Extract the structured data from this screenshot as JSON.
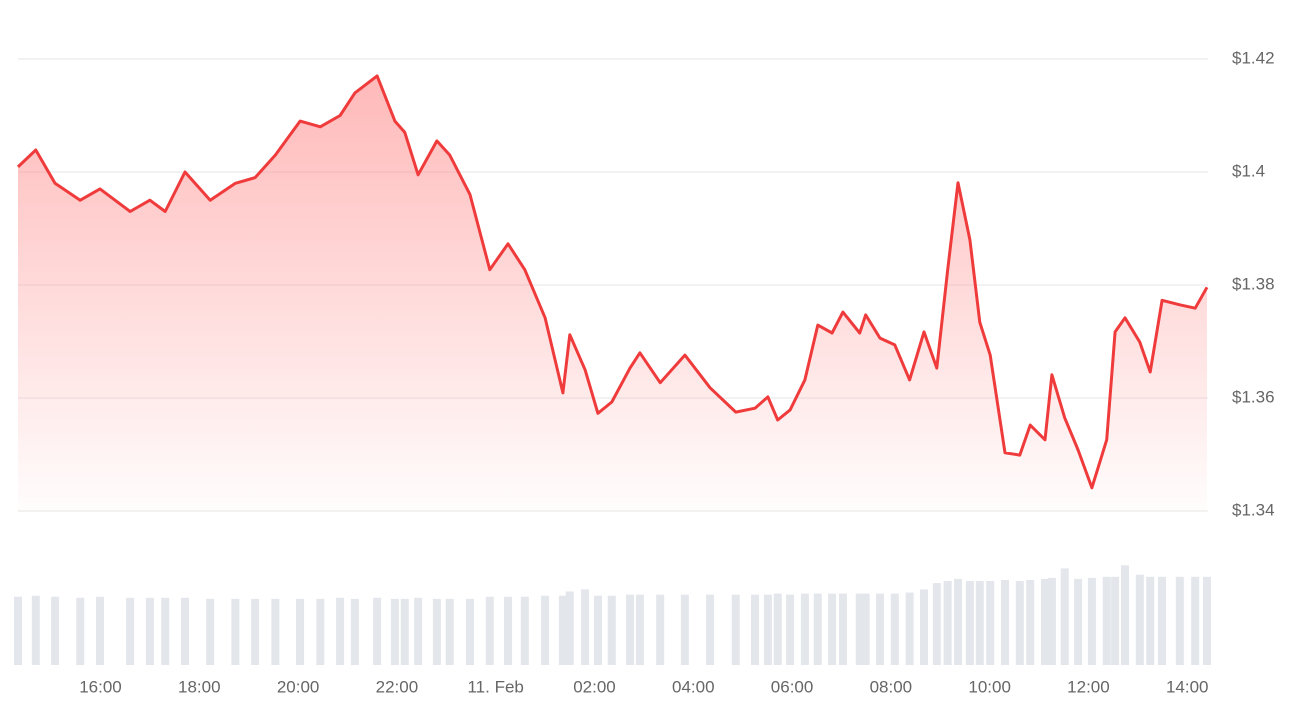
{
  "chart_data": {
    "type": "area",
    "color": "#ef3b3b",
    "x": [
      14.33,
      14.69,
      15.08,
      15.59,
      15.99,
      16.6,
      17.0,
      17.31,
      17.71,
      18.22,
      18.73,
      19.13,
      19.54,
      20.04,
      20.45,
      20.85,
      21.15,
      21.6,
      21.96,
      22.16,
      22.43,
      22.81,
      23.07,
      23.48,
      23.88,
      24.25,
      24.59,
      25.0,
      25.36,
      25.5,
      25.81,
      26.07,
      26.35,
      26.72,
      26.92,
      27.33,
      27.83,
      28.34,
      28.86,
      29.25,
      29.51,
      29.71,
      29.96,
      30.26,
      30.52,
      30.81,
      31.03,
      31.37,
      31.49,
      31.78,
      32.08,
      32.38,
      32.67,
      32.93,
      33.15,
      33.36,
      33.6,
      33.8,
      34.01,
      34.31,
      34.61,
      34.82,
      35.12,
      35.26,
      35.52,
      35.79,
      36.07,
      36.37,
      36.54,
      36.74,
      37.04,
      37.25,
      37.49,
      37.85,
      38.16,
      38.4
    ],
    "values": [
      1.4009,
      1.4039,
      1.398,
      1.395,
      1.397,
      1.393,
      1.395,
      1.393,
      1.4,
      1.395,
      1.398,
      1.399,
      1.403,
      1.409,
      1.408,
      1.41,
      1.414,
      1.417,
      1.409,
      1.407,
      1.3995,
      1.4055,
      1.403,
      1.396,
      1.3827,
      1.3873,
      1.3827,
      1.3742,
      1.3609,
      1.3712,
      1.365,
      1.3573,
      1.3593,
      1.3653,
      1.368,
      1.3627,
      1.3676,
      1.3618,
      1.3575,
      1.3582,
      1.3602,
      1.3561,
      1.3579,
      1.3632,
      1.3729,
      1.3715,
      1.3752,
      1.3715,
      1.3747,
      1.3706,
      1.3694,
      1.3632,
      1.3717,
      1.3653,
      1.3827,
      1.3981,
      1.388,
      1.3734,
      1.3676,
      1.3503,
      1.3499,
      1.3552,
      1.3526,
      1.3641,
      1.3565,
      1.3508,
      1.3441,
      1.3526,
      1.3717,
      1.3742,
      1.3699,
      1.3646,
      1.3773,
      1.3765,
      1.3759,
      1.3796
    ],
    "xlim": [
      14.33,
      38.42
    ],
    "xticks": [
      {
        "value": 16,
        "label": "16:00"
      },
      {
        "value": 18,
        "label": "18:00"
      },
      {
        "value": 20,
        "label": "20:00"
      },
      {
        "value": 22,
        "label": "22:00"
      },
      {
        "value": 24,
        "label": "11. Feb"
      },
      {
        "value": 26,
        "label": "02:00"
      },
      {
        "value": 28,
        "label": "04:00"
      },
      {
        "value": 30,
        "label": "06:00"
      },
      {
        "value": 32,
        "label": "08:00"
      },
      {
        "value": 34,
        "label": "10:00"
      },
      {
        "value": 36,
        "label": "12:00"
      },
      {
        "value": 38,
        "label": "14:00"
      }
    ],
    "ylim": [
      1.34,
      1.42
    ],
    "yticks": [
      {
        "value": 1.34,
        "label": "$1.34"
      },
      {
        "value": 1.36,
        "label": "$1.36"
      },
      {
        "value": 1.38,
        "label": "$1.38"
      },
      {
        "value": 1.4,
        "label": "$1.4"
      },
      {
        "value": 1.42,
        "label": "$1.42"
      }
    ],
    "grid": true,
    "volume": {
      "color": "#e3e6eb",
      "ylim": [
        0,
        100
      ],
      "values": [
        65,
        66,
        65,
        64,
        65,
        64,
        64,
        64,
        64,
        63,
        63,
        63,
        63,
        63,
        63,
        64,
        63,
        64,
        63,
        63,
        64,
        63,
        63,
        63,
        65,
        65,
        65,
        66,
        66,
        70,
        72,
        66,
        66,
        67,
        67,
        67,
        67,
        67,
        67,
        67,
        67,
        68,
        67,
        68,
        68,
        68,
        68,
        68,
        68,
        68,
        68,
        69,
        72,
        78,
        80,
        82,
        80,
        80,
        80,
        81,
        80,
        81,
        82,
        83,
        92,
        82,
        83,
        84,
        84,
        95,
        86,
        84,
        84,
        84,
        84,
        84
      ]
    }
  }
}
